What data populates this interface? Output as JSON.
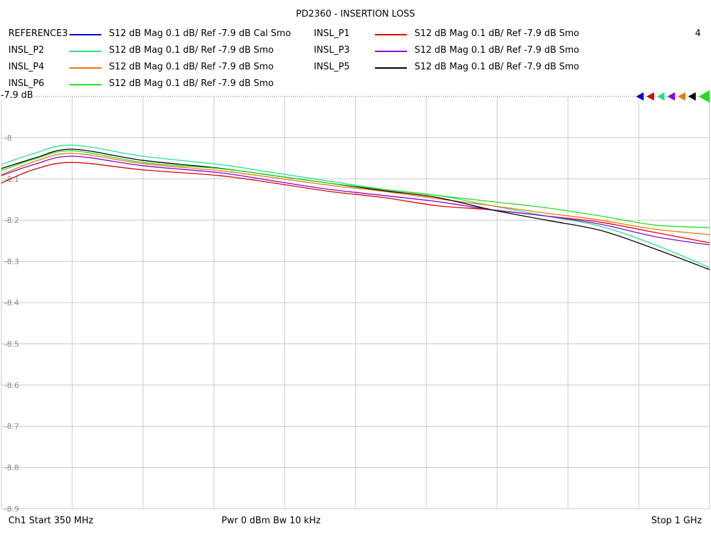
{
  "chart_data": {
    "type": "line",
    "title": "PD2360 - INSERTION LOSS",
    "channel_number": "4",
    "reference_label": "-7.9 dB",
    "x_domain": [
      350,
      1000
    ],
    "ylim": [
      -8.9,
      -7.9
    ],
    "y_ticks": [
      {
        "value": -7.9,
        "label": "-7.9"
      },
      {
        "value": -8.0,
        "label": "-8"
      },
      {
        "value": -8.1,
        "label": "-8.1"
      },
      {
        "value": -8.2,
        "label": "-8.2"
      },
      {
        "value": -8.3,
        "label": "-8.3"
      },
      {
        "value": -8.4,
        "label": "-8.4"
      },
      {
        "value": -8.5,
        "label": "-8.5"
      },
      {
        "value": -8.6,
        "label": "-8.6"
      },
      {
        "value": -8.7,
        "label": "-8.7"
      },
      {
        "value": -8.8,
        "label": "-8.8"
      },
      {
        "value": -8.9,
        "label": "-8.9"
      }
    ],
    "x_divisions": 10,
    "grid": true,
    "x": [
      350,
      380,
      415,
      480,
      550,
      600,
      650,
      700,
      750,
      800,
      850,
      900,
      950,
      1000
    ],
    "series": [
      {
        "name": "REFERENCE3",
        "desc": "S12  dB Mag  0.1 dB/ Ref -7.9 dB  Cal Smo",
        "color": "#0000cc",
        "values": null
      },
      {
        "name": "INSL_P1",
        "desc": "S12  dB Mag  0.1 dB/ Ref -7.9 dB  Smo",
        "color": "#dd0000",
        "values": [
          -8.11,
          -8.077,
          -8.06,
          -8.078,
          -8.092,
          -8.11,
          -8.13,
          -8.145,
          -8.165,
          -8.175,
          -8.19,
          -8.205,
          -8.23,
          -8.255
        ]
      },
      {
        "name": "INSL_P2",
        "desc": "S12  dB Mag  0.1 dB/ Ref -7.9 dB  Smo",
        "color": "#22e08a",
        "values": [
          -8.065,
          -8.038,
          -8.018,
          -8.045,
          -8.065,
          -8.085,
          -8.105,
          -8.125,
          -8.14,
          -8.165,
          -8.19,
          -8.215,
          -8.26,
          -8.315
        ]
      },
      {
        "name": "INSL_P3",
        "desc": "S12  dB Mag  0.1 dB/ Ref -7.9 dB  Smo",
        "color": "#8800dd",
        "values": [
          -8.092,
          -8.065,
          -8.045,
          -8.068,
          -8.085,
          -8.105,
          -8.125,
          -8.14,
          -8.155,
          -8.175,
          -8.19,
          -8.21,
          -8.24,
          -8.26
        ]
      },
      {
        "name": "INSL_P4",
        "desc": "S12  dB Mag  0.1 dB/ Ref -7.9 dB  Smo",
        "color": "#ee7700",
        "values": [
          -8.09,
          -8.058,
          -8.038,
          -8.063,
          -8.08,
          -8.097,
          -8.115,
          -8.13,
          -8.148,
          -8.165,
          -8.183,
          -8.2,
          -8.222,
          -8.235
        ]
      },
      {
        "name": "INSL_P5",
        "desc": "S12  dB Mag  0.1 dB/ Ref -7.9 dB  Smo",
        "color": "#000000",
        "values": [
          -8.075,
          -8.05,
          -8.028,
          -8.055,
          -8.074,
          -8.092,
          -8.11,
          -8.128,
          -8.145,
          -8.175,
          -8.2,
          -8.225,
          -8.27,
          -8.32
        ]
      },
      {
        "name": "INSL_P6",
        "desc": "S12  dB Mag  0.1 dB/ Ref -7.9 dB  Smo",
        "color": "#22dd22",
        "values": [
          -8.08,
          -8.052,
          -8.032,
          -8.06,
          -8.075,
          -8.092,
          -8.11,
          -8.125,
          -8.14,
          -8.155,
          -8.17,
          -8.19,
          -8.212,
          -8.218
        ]
      }
    ]
  },
  "footer": {
    "left": "Ch1  Start  350 MHz",
    "center": "Pwr  0 dBm  Bw  10 kHz",
    "right": "Stop  1 GHz"
  }
}
